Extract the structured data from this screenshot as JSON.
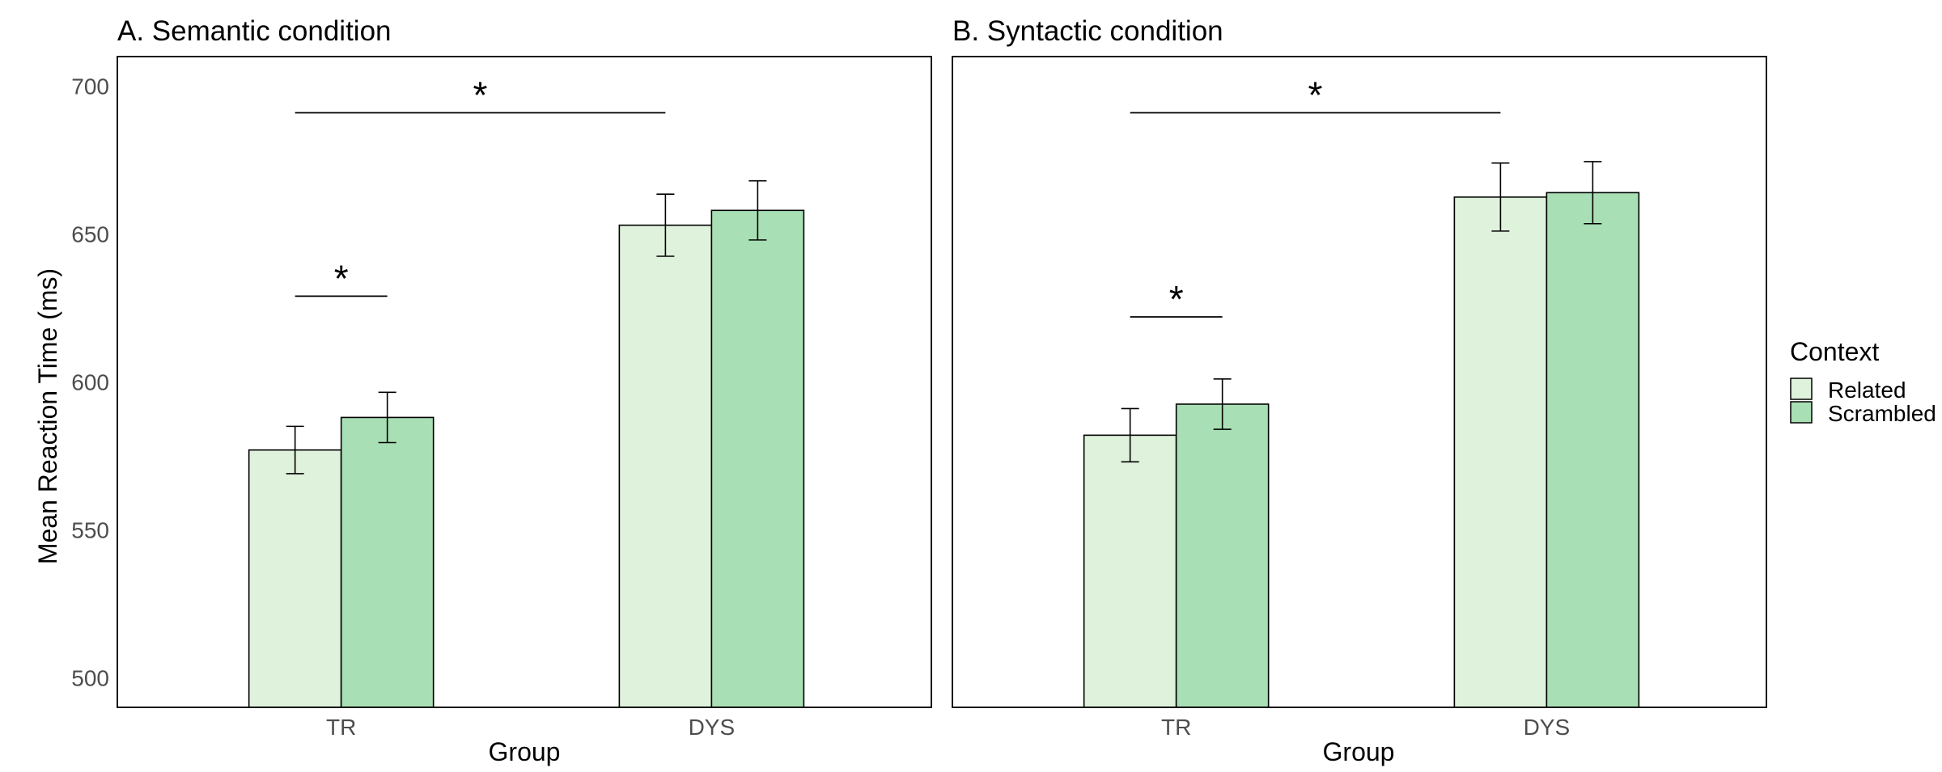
{
  "y_axis_title": "Mean Reaction Time (ms)",
  "legend": {
    "title": "Context",
    "items": [
      {
        "label": "Related",
        "color": "#dff2dc"
      },
      {
        "label": "Scrambled",
        "color": "#a8dfb4"
      }
    ]
  },
  "colors": {
    "border": "#000000",
    "tick_text": "#4d4d4d",
    "text": "#000000"
  },
  "chart_data": [
    {
      "type": "bar",
      "title": "A. Semantic condition",
      "xlabel": "Group",
      "ylabel": "Mean Reaction Time (ms)",
      "categories": [
        "TR",
        "DYS"
      ],
      "ylim": [
        490,
        710
      ],
      "yticks": [
        500,
        550,
        600,
        650,
        700
      ],
      "grid": false,
      "series": [
        {
          "name": "Related",
          "values": [
            577,
            653
          ],
          "errors": [
            8,
            10.5
          ]
        },
        {
          "name": "Scrambled",
          "values": [
            588,
            658
          ],
          "errors": [
            8.5,
            10
          ]
        }
      ],
      "significance": [
        {
          "label": "*",
          "y": 629,
          "from": [
            0,
            0
          ],
          "to": [
            0,
            1
          ]
        },
        {
          "label": "*",
          "y": 691,
          "from": [
            0,
            0
          ],
          "to": [
            1,
            0
          ]
        }
      ]
    },
    {
      "type": "bar",
      "title": "B. Syntactic condition",
      "xlabel": "Group",
      "ylabel": "",
      "categories": [
        "TR",
        "DYS"
      ],
      "ylim": [
        490,
        710
      ],
      "yticks": [
        500,
        550,
        600,
        650,
        700
      ],
      "grid": false,
      "series": [
        {
          "name": "Related",
          "values": [
            582,
            662.5
          ],
          "errors": [
            9,
            11.5
          ]
        },
        {
          "name": "Scrambled",
          "values": [
            592.5,
            664
          ],
          "errors": [
            8.5,
            10.5
          ]
        }
      ],
      "significance": [
        {
          "label": "*",
          "y": 622,
          "from": [
            0,
            0
          ],
          "to": [
            0,
            1
          ]
        },
        {
          "label": "*",
          "y": 691,
          "from": [
            0,
            0
          ],
          "to": [
            1,
            0
          ]
        }
      ]
    }
  ]
}
